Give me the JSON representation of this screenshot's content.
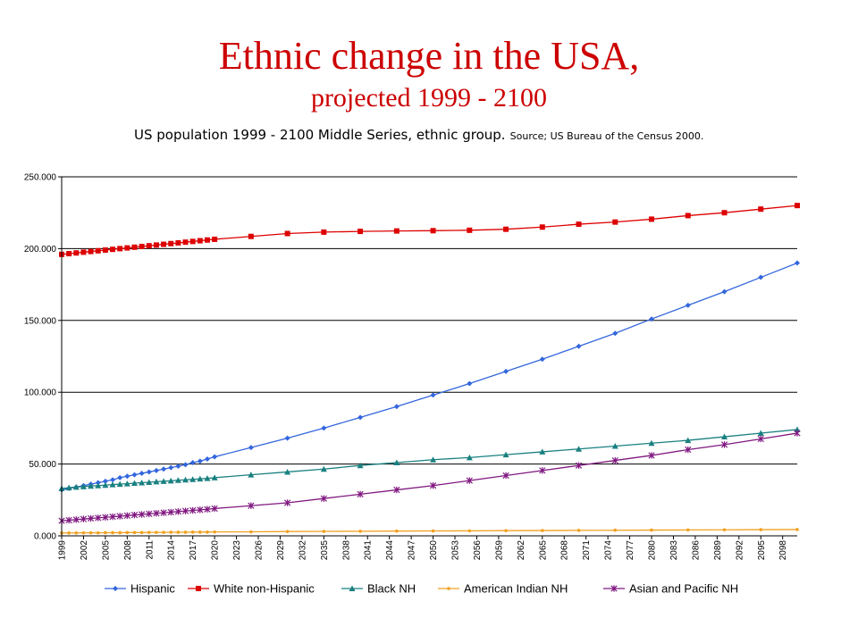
{
  "slide": {
    "title": "Ethnic change in the USA,",
    "subtitle": "projected 1999  - 2100"
  },
  "chart_heading": {
    "main": "US population 1999 - 2100 Middle Series, ethnic group.",
    "source": "Source; US Bureau of the Census 2000."
  },
  "chart_data": {
    "type": "line",
    "ylim": [
      0,
      250
    ],
    "y_ticks": [
      0,
      50,
      100,
      150,
      200,
      250
    ],
    "y_tick_labels": [
      "0.000",
      "50.000",
      "100.000",
      "150.000",
      "200.000",
      "250.000"
    ],
    "x_tick_labels": [
      "1999",
      "2002",
      "2005",
      "2008",
      "2011",
      "2014",
      "2017",
      "2020",
      "2023",
      "2026",
      "2029",
      "2032",
      "2035",
      "2038",
      "2041",
      "2044",
      "2047",
      "2050",
      "2053",
      "2056",
      "2059",
      "2062",
      "2065",
      "2068",
      "2071",
      "2074",
      "2077",
      "2080",
      "2083",
      "2086",
      "2089",
      "2092",
      "2095",
      "2098"
    ],
    "grid": true,
    "legend_position": "bottom",
    "categories": [
      "1999",
      "2000",
      "2001",
      "2002",
      "2003",
      "2004",
      "2005",
      "2006",
      "2007",
      "2008",
      "2009",
      "2010",
      "2011",
      "2012",
      "2013",
      "2014",
      "2015",
      "2016",
      "2017",
      "2018",
      "2019",
      "2020",
      "2025",
      "2030",
      "2035",
      "2040",
      "2045",
      "2050",
      "2055",
      "2060",
      "2065",
      "2070",
      "2075",
      "2080",
      "2085",
      "2090",
      "2095",
      "2100"
    ],
    "series": [
      {
        "name": "Hispanic",
        "color": "#3366dd",
        "marker": "diamond",
        "values": [
          32,
          33,
          34,
          35,
          36,
          37,
          38,
          39,
          40.5,
          41.5,
          42.5,
          43.5,
          44.5,
          45.5,
          46.5,
          47.5,
          48.5,
          49.5,
          51,
          52,
          53.5,
          55,
          61.5,
          68,
          75,
          82.5,
          90,
          98,
          106,
          114.5,
          123,
          132,
          141,
          151,
          160.5,
          170,
          180,
          190
        ]
      },
      {
        "name": "White non-Hispanic",
        "color": "#dd0000",
        "marker": "square",
        "values": [
          196,
          196.5,
          197,
          197.5,
          198,
          198.5,
          199,
          199.5,
          200,
          200.5,
          201,
          201.5,
          202,
          202.5,
          203,
          203.5,
          204,
          204.5,
          205,
          205.5,
          206,
          206.5,
          208.5,
          210.5,
          211.5,
          212,
          212.3,
          212.5,
          212.8,
          213.5,
          215,
          217,
          218.5,
          220.5,
          223,
          225,
          227.5,
          230
        ]
      },
      {
        "name": "Black NH",
        "color": "#1a8080",
        "marker": "triangle",
        "values": [
          33,
          33.5,
          34,
          34.3,
          34.7,
          35,
          35.3,
          35.7,
          36,
          36.3,
          36.7,
          37,
          37.3,
          37.7,
          38,
          38.3,
          38.7,
          39,
          39.3,
          39.7,
          40,
          40.5,
          42.5,
          44.5,
          46.5,
          49,
          51,
          53,
          54.5,
          56.5,
          58.5,
          60.5,
          62.5,
          64.5,
          66.5,
          69,
          71.5,
          74
        ]
      },
      {
        "name": "American Indian NH",
        "color": "#f0a020",
        "marker": "dot",
        "values": [
          2.0,
          2.0,
          2.0,
          2.1,
          2.1,
          2.1,
          2.2,
          2.2,
          2.2,
          2.3,
          2.3,
          2.3,
          2.4,
          2.4,
          2.4,
          2.5,
          2.5,
          2.5,
          2.6,
          2.6,
          2.6,
          2.7,
          2.8,
          3.0,
          3.1,
          3.2,
          3.3,
          3.4,
          3.5,
          3.6,
          3.7,
          3.8,
          3.9,
          4.0,
          4.1,
          4.2,
          4.3,
          4.4
        ]
      },
      {
        "name": "Asian and Pacific NH",
        "color": "#801880",
        "marker": "star",
        "values": [
          10.5,
          10.9,
          11.3,
          11.7,
          12.1,
          12.5,
          12.9,
          13.3,
          13.7,
          14.1,
          14.5,
          14.9,
          15.3,
          15.7,
          16.1,
          16.5,
          16.9,
          17.3,
          17.7,
          18.1,
          18.5,
          19,
          21,
          23,
          26,
          29,
          32,
          35,
          38.5,
          42,
          45.5,
          49,
          52.5,
          56,
          60,
          63.5,
          67.5,
          71.5
        ]
      }
    ]
  }
}
